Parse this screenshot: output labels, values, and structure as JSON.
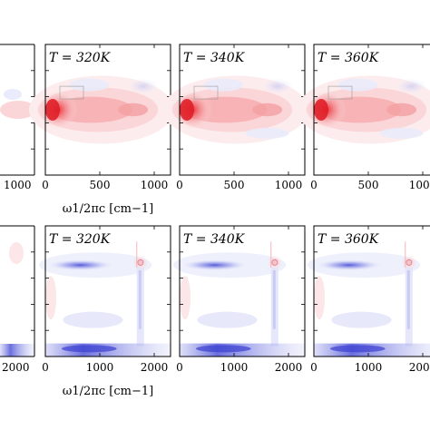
{
  "chart_data": [
    {
      "type": "heatmap",
      "row": "top",
      "xlabel": "ω1/2πc [cm−1]",
      "x_ticks": [
        "0",
        "500",
        "1000"
      ],
      "partial_left_tick": "1000",
      "panels": [
        {
          "title": "T = 320K"
        },
        {
          "title": "T = 340K"
        },
        {
          "title": "T = 360K"
        }
      ],
      "colors": {
        "positive": "#e8242c",
        "negative": "#3a3fd0"
      }
    },
    {
      "type": "heatmap",
      "row": "bottom",
      "xlabel": "ω1/2πc [cm−1]",
      "x_ticks": [
        "0",
        "1000",
        "2000"
      ],
      "partial_left_tick": "2000",
      "panels": [
        {
          "title": "T = 320K"
        },
        {
          "title": "T = 340K"
        },
        {
          "title": "T = 360K"
        }
      ],
      "colors": {
        "positive": "#e8242c",
        "negative": "#3a3fd0"
      }
    }
  ]
}
